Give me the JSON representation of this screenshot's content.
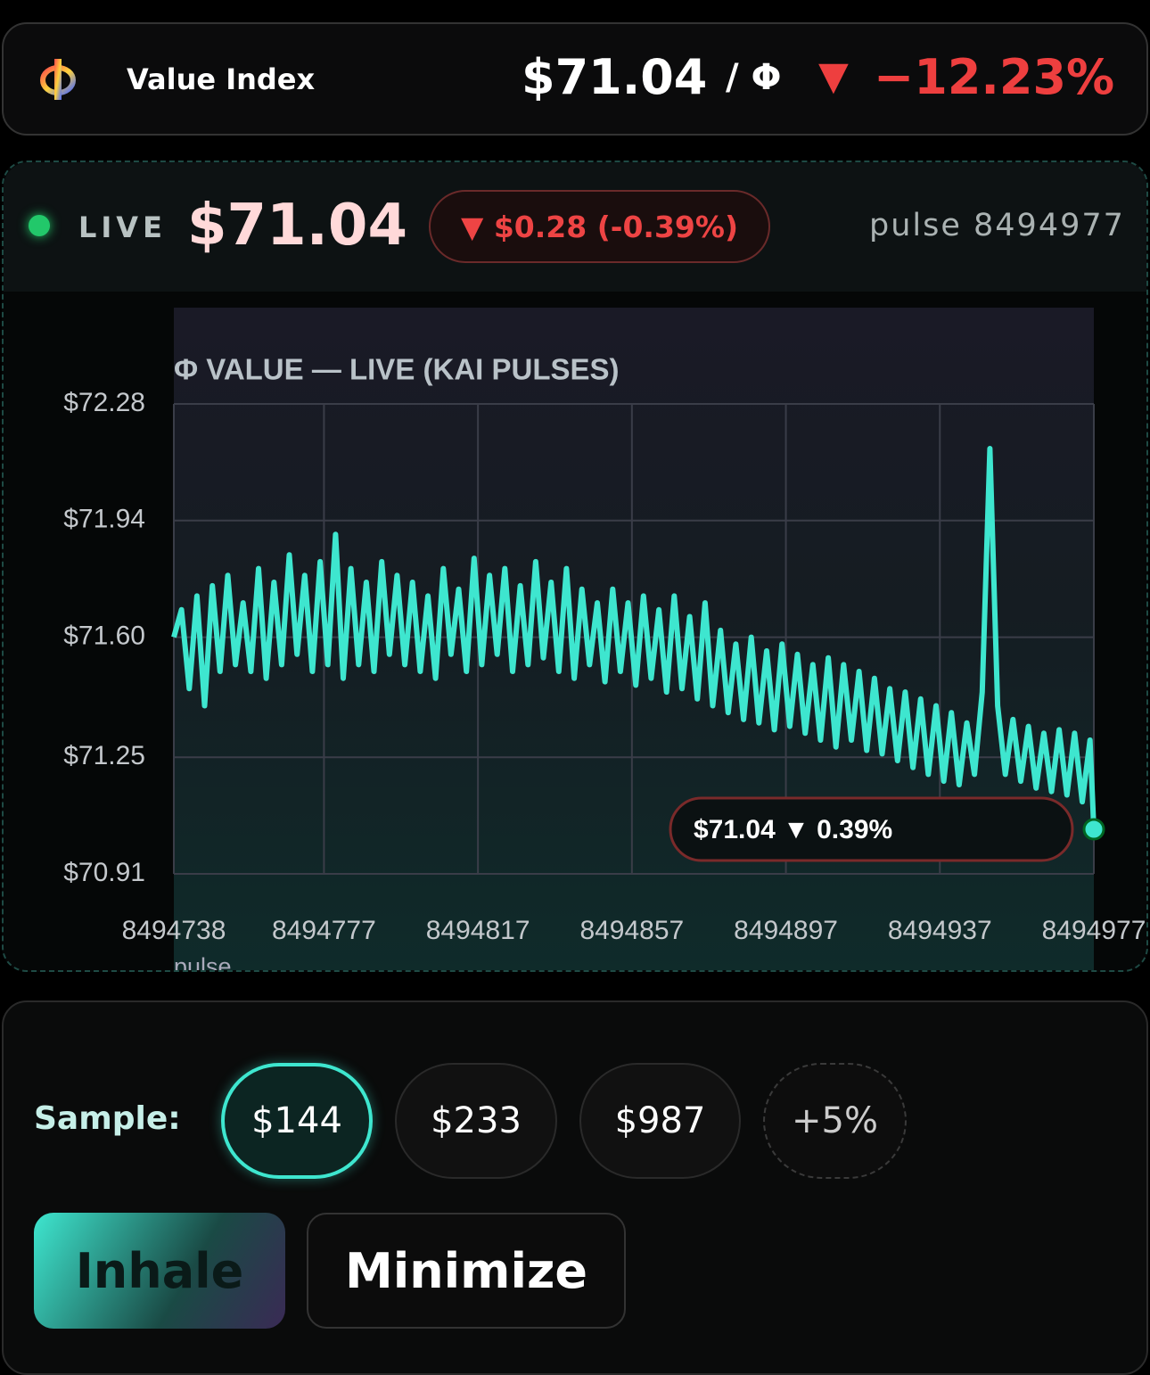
{
  "header": {
    "title": "Value Index",
    "price": "$71.04",
    "unit": "/ Φ",
    "arrow": "▼",
    "change": "−12.23%"
  },
  "live": {
    "label": "LIVE",
    "price": "$71.04",
    "change": "▼ $0.28 (-0.39%)",
    "pulse": "pulse 8494977"
  },
  "chart_data": {
    "type": "line",
    "title": "Φ VALUE — LIVE (KAI PULSES)",
    "x_label": "pulse",
    "annotation": "$71.04 ▼ 0.39%",
    "x": [
      8494738,
      8494740,
      8494742,
      8494744,
      8494746,
      8494748,
      8494750,
      8494752,
      8494754,
      8494756,
      8494758,
      8494760,
      8494762,
      8494764,
      8494766,
      8494768,
      8494770,
      8494772,
      8494774,
      8494776,
      8494778,
      8494780,
      8494782,
      8494784,
      8494786,
      8494788,
      8494790,
      8494792,
      8494794,
      8494796,
      8494798,
      8494800,
      8494802,
      8494804,
      8494806,
      8494808,
      8494810,
      8494812,
      8494814,
      8494816,
      8494818,
      8494820,
      8494822,
      8494824,
      8494826,
      8494828,
      8494830,
      8494832,
      8494834,
      8494836,
      8494838,
      8494840,
      8494842,
      8494844,
      8494846,
      8494848,
      8494850,
      8494852,
      8494854,
      8494856,
      8494858,
      8494860,
      8494862,
      8494864,
      8494866,
      8494868,
      8494870,
      8494872,
      8494874,
      8494876,
      8494878,
      8494880,
      8494882,
      8494884,
      8494886,
      8494888,
      8494890,
      8494892,
      8494894,
      8494896,
      8494898,
      8494900,
      8494902,
      8494904,
      8494906,
      8494908,
      8494910,
      8494912,
      8494914,
      8494916,
      8494918,
      8494920,
      8494922,
      8494924,
      8494926,
      8494928,
      8494930,
      8494932,
      8494934,
      8494936,
      8494938,
      8494940,
      8494942,
      8494944,
      8494946,
      8494948,
      8494950,
      8494952,
      8494954,
      8494956,
      8494958,
      8494960,
      8494962,
      8494964,
      8494966,
      8494968,
      8494970,
      8494972,
      8494974,
      8494976,
      8494977
    ],
    "series": [
      {
        "name": "Φ value",
        "color": "#3ee6cf",
        "values": [
          71.6,
          71.68,
          71.45,
          71.72,
          71.4,
          71.75,
          71.5,
          71.78,
          71.52,
          71.7,
          71.5,
          71.8,
          71.48,
          71.76,
          71.52,
          71.84,
          71.55,
          71.78,
          71.5,
          71.82,
          71.52,
          71.9,
          71.48,
          71.8,
          71.52,
          71.76,
          71.5,
          71.82,
          71.55,
          71.78,
          71.52,
          71.76,
          71.5,
          71.72,
          71.48,
          71.8,
          71.55,
          71.74,
          71.5,
          71.83,
          71.52,
          71.78,
          71.55,
          71.8,
          71.5,
          71.75,
          71.52,
          71.82,
          71.54,
          71.76,
          71.5,
          71.8,
          71.48,
          71.74,
          71.52,
          71.7,
          71.47,
          71.74,
          71.5,
          71.7,
          71.46,
          71.72,
          71.48,
          71.68,
          71.44,
          71.72,
          71.45,
          71.66,
          71.42,
          71.7,
          71.4,
          71.62,
          71.38,
          71.58,
          71.36,
          71.6,
          71.35,
          71.56,
          71.33,
          71.58,
          71.34,
          71.55,
          71.32,
          71.52,
          71.3,
          71.54,
          71.28,
          71.52,
          71.3,
          71.5,
          71.27,
          71.48,
          71.26,
          71.45,
          71.24,
          71.44,
          71.22,
          71.42,
          71.2,
          71.4,
          71.18,
          71.38,
          71.17,
          71.35,
          71.2,
          71.44,
          72.15,
          71.4,
          71.2,
          71.36,
          71.18,
          71.34,
          71.16,
          71.32,
          71.15,
          71.33,
          71.14,
          71.32,
          71.12,
          71.3,
          71.04
        ]
      }
    ],
    "xlim": [
      8494738,
      8494977
    ],
    "xticks": [
      8494738,
      8494777,
      8494817,
      8494857,
      8494897,
      8494937,
      8494977
    ],
    "ylim": [
      70.91,
      72.28
    ],
    "yticks": [
      {
        "value": 70.91,
        "label": "$70.91"
      },
      {
        "value": 71.25,
        "label": "$71.25"
      },
      {
        "value": 71.6,
        "label": "$71.60"
      },
      {
        "value": 71.94,
        "label": "$71.94"
      },
      {
        "value": 72.28,
        "label": "$72.28"
      }
    ],
    "grid": true
  },
  "sample": {
    "label": "Sample:",
    "options": [
      "$144",
      "$233",
      "$987",
      "+5%"
    ]
  },
  "actions": [
    "Inhale",
    "Minimize"
  ]
}
